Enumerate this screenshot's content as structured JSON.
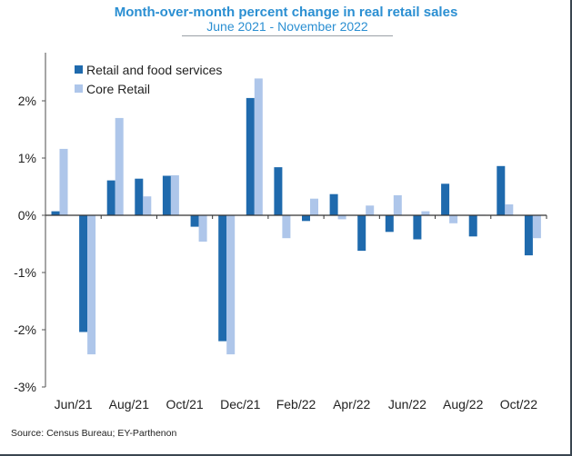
{
  "chart_data": {
    "type": "bar",
    "title": "Month-over-month percent change in real retail sales",
    "subtitle": "June 2021 - November 2022",
    "xlabel": "",
    "ylabel": "",
    "ylim": [
      -3,
      2.5
    ],
    "yticks": [
      2,
      1,
      0,
      -1,
      -2,
      -3
    ],
    "ytick_labels": [
      "2%",
      "1%",
      "0%",
      "-1%",
      "-2%",
      "-3%"
    ],
    "grid": false,
    "legend_position": "top-left",
    "categories": [
      "Jun/21",
      "Jul/21",
      "Aug/21",
      "Sep/21",
      "Oct/21",
      "Nov/21",
      "Dec/21",
      "Jan/22",
      "Feb/22",
      "Mar/22",
      "Apr/22",
      "May/22",
      "Jun/22",
      "Jul/22",
      "Aug/22",
      "Sep/22",
      "Oct/22",
      "Nov/22"
    ],
    "xtick_labels": [
      "Jun/21",
      "Aug/21",
      "Oct/21",
      "Dec/21",
      "Feb/22",
      "Apr/22",
      "Jun/22",
      "Aug/22",
      "Oct/22"
    ],
    "series": [
      {
        "name": "Retail and food services",
        "color": "#1f6aad",
        "values": [
          0.07,
          -2.04,
          0.61,
          0.64,
          0.69,
          -0.2,
          -2.2,
          2.05,
          0.84,
          -0.1,
          0.37,
          -0.62,
          -0.29,
          -0.42,
          0.55,
          -0.37,
          0.86,
          -0.7
        ]
      },
      {
        "name": "Core Retail",
        "color": "#aec6ea",
        "values": [
          1.16,
          -2.43,
          1.7,
          0.33,
          0.7,
          -0.46,
          -2.43,
          2.39,
          -0.4,
          0.29,
          -0.07,
          0.17,
          0.35,
          0.07,
          -0.14,
          0.01,
          0.19,
          -0.4
        ]
      }
    ],
    "source": "Source: Census Bureau; EY-Parthenon"
  }
}
